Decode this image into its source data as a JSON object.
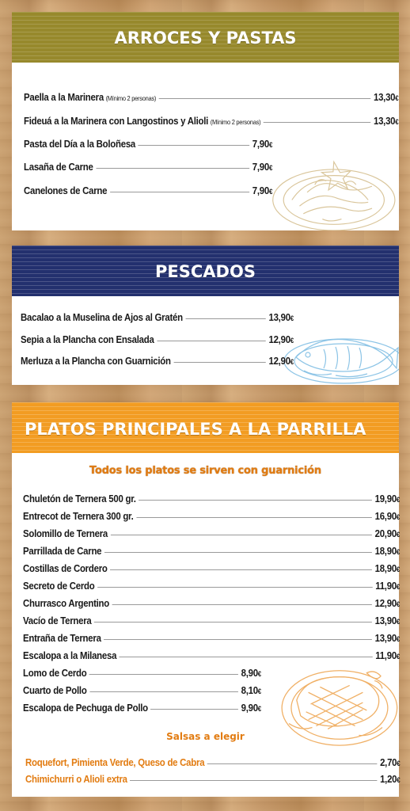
{
  "sections": {
    "arroces": {
      "title": "ARROCES Y PASTAS",
      "items": [
        {
          "name": "Paella a la Marinera",
          "note": "(Mínimo 2 personas)",
          "price": "13,30",
          "currency": "€"
        },
        {
          "name": "Fideuá a la Marinera con Langostinos y Alioli",
          "note": "(Mínimo 2 personas)",
          "price": "13,30",
          "currency": "€"
        },
        {
          "name": "Pasta del Día a la Boloñesa",
          "note": "",
          "price": "7,90",
          "currency": "€"
        },
        {
          "name": "Lasaña de Carne",
          "note": "",
          "price": "7,90",
          "currency": "€"
        },
        {
          "name": "Canelones de Carne",
          "note": "",
          "price": "7,90",
          "currency": "€"
        }
      ]
    },
    "pescados": {
      "title": "PESCADOS",
      "items": [
        {
          "name": "Bacalao a la Muselina de Ajos al Gratén",
          "price": "13,90",
          "currency": "€"
        },
        {
          "name": "Sepia a la Plancha con Ensalada",
          "price": "12,90",
          "currency": "€"
        },
        {
          "name": "Merluza a la Plancha con Guarnición",
          "price": "12,90",
          "currency": "€"
        }
      ]
    },
    "parrilla": {
      "title": "PLATOS PRINCIPALES A LA PARRILLA",
      "subtitle": "Todos los platos se sirven con guarnición",
      "items": [
        {
          "name": "Chuletón de Ternera 500 gr.",
          "price": "19,90",
          "currency": "€"
        },
        {
          "name": "Entrecot de Ternera 300 gr.",
          "price": "16,90",
          "currency": "€"
        },
        {
          "name": "Solomillo de Ternera",
          "price": "20,90",
          "currency": "€"
        },
        {
          "name": "Parrillada de Carne",
          "price": "18,90",
          "currency": "€"
        },
        {
          "name": "Costillas de Cordero",
          "price": "18,90",
          "currency": "€"
        },
        {
          "name": "Secreto de Cerdo",
          "price": "11,90",
          "currency": "€"
        },
        {
          "name": "Churrasco Argentino",
          "price": "12,90",
          "currency": "€"
        },
        {
          "name": "Vacío de Ternera",
          "price": "13,90",
          "currency": "€"
        },
        {
          "name": "Entraña de Ternera",
          "price": "13,90",
          "currency": "€"
        },
        {
          "name": "Escalopa a la Milanesa",
          "price": "11,90",
          "currency": "€"
        },
        {
          "name": "Lomo de Cerdo",
          "price": "8,90",
          "currency": "€"
        },
        {
          "name": "Cuarto de Pollo",
          "price": "8,10",
          "currency": "€"
        },
        {
          "name": "Escalopa de Pechuga de Pollo",
          "price": "9,90",
          "currency": "€"
        }
      ],
      "salsas_title": "Salsas a elegir",
      "salsas": [
        {
          "name": "Roquefort, Pimienta Verde, Queso de Cabra",
          "price": "2,70",
          "currency": "€"
        },
        {
          "name": "Chimichurri o Alioli extra",
          "price": "1,20",
          "currency": "€"
        }
      ]
    }
  },
  "colors": {
    "olive": "#97892c",
    "navy": "#23306e",
    "orange": "#f29c22",
    "accent_text": "#e27c12"
  },
  "icons": [
    "pasta-plate-illustration",
    "fish-plate-illustration",
    "steak-plate-illustration"
  ]
}
